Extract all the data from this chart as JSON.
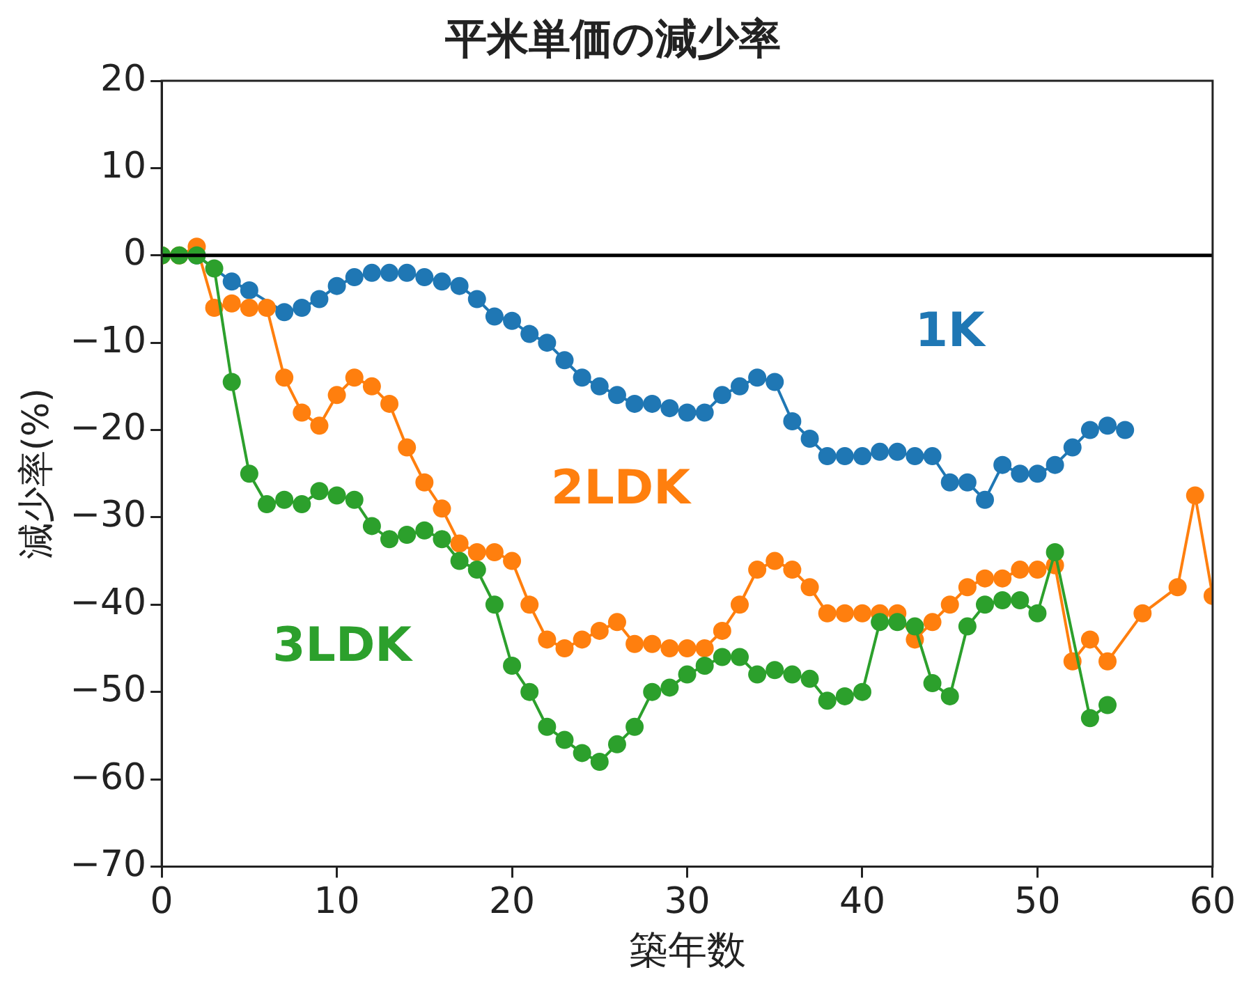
{
  "chart_data": {
    "type": "line",
    "title": "平米単価の減少率",
    "xlabel": "築年数",
    "ylabel": "減少率(%)",
    "xlim": [
      0,
      60
    ],
    "xticks": [
      0,
      10,
      20,
      30,
      40,
      50,
      60
    ],
    "ylim": [
      -70,
      20
    ],
    "yticks": [
      {
        "value": -70,
        "label": "−70"
      },
      {
        "value": -60,
        "label": "−60"
      },
      {
        "value": -50,
        "label": "−50"
      },
      {
        "value": -40,
        "label": "−40"
      },
      {
        "value": -30,
        "label": "−30"
      },
      {
        "value": -20,
        "label": "−20"
      },
      {
        "value": -10,
        "label": "−10"
      },
      0,
      10,
      20
    ],
    "grid": false,
    "legend": false,
    "marker": "circle",
    "line_style": "solid",
    "ref_lines": [
      {
        "axis": "y",
        "value": 0,
        "color": "#000000"
      }
    ],
    "series": [
      {
        "name": "1K",
        "color": "#1f77b4",
        "x": [
          2,
          3,
          4,
          5,
          6,
          7,
          8,
          9,
          10,
          11,
          12,
          13,
          14,
          15,
          16,
          17,
          18,
          19,
          20,
          21,
          22,
          23,
          24,
          25,
          26,
          27,
          28,
          29,
          30,
          31,
          32,
          33,
          34,
          35,
          36,
          37,
          38,
          39,
          40,
          41,
          42,
          43,
          44,
          45,
          46,
          47,
          48,
          49,
          50,
          51,
          52,
          53,
          54,
          55
        ],
        "values": [
          0,
          null,
          -3,
          -4,
          null,
          -6.5,
          -6,
          -5,
          -3.5,
          -2.5,
          -2,
          -2,
          -2,
          -2.5,
          -3,
          -3.5,
          -5,
          -7,
          -7.5,
          -9,
          -10,
          -12,
          -14,
          -15,
          -16,
          -17,
          -17,
          -17.5,
          -18,
          -18,
          -16,
          -15,
          -14,
          -14.5,
          -19,
          -21,
          -23,
          -23,
          -23,
          -22.5,
          -22.5,
          -23,
          -23,
          -26,
          -26,
          -28,
          -24,
          -25,
          -25,
          -24,
          -22,
          -20,
          -19.5,
          -20
        ]
      },
      {
        "name": "2LDK",
        "color": "#ff7f0e",
        "x": [
          0,
          1,
          2,
          3,
          4,
          5,
          6,
          7,
          8,
          9,
          10,
          11,
          12,
          13,
          14,
          15,
          16,
          17,
          18,
          19,
          20,
          21,
          22,
          23,
          24,
          25,
          26,
          27,
          28,
          29,
          30,
          31,
          32,
          33,
          34,
          35,
          36,
          37,
          38,
          39,
          40,
          41,
          42,
          43,
          44,
          45,
          46,
          47,
          48,
          49,
          50,
          51,
          52,
          53,
          54,
          56,
          58,
          59,
          60
        ],
        "values": [
          0,
          0,
          1,
          -6,
          -5.5,
          -6,
          -6,
          -14,
          -18,
          -19.5,
          -16,
          -14,
          -15,
          -17,
          -22,
          -26,
          -29,
          -33,
          -34,
          -34,
          -35,
          -40,
          -44,
          -45,
          -44,
          -43,
          -42,
          -44.5,
          -44.5,
          -45,
          -45,
          -45,
          -43,
          -40,
          -36,
          -35,
          -36,
          -38,
          -41,
          -41,
          -41,
          -41,
          -41,
          -44,
          -42,
          -40,
          -38,
          -37,
          -37,
          -36,
          -36,
          -35.5,
          -46.5,
          -44,
          -46.5,
          -41,
          -38,
          -27.5,
          -39
        ]
      },
      {
        "name": "3LDK",
        "color": "#2ca02c",
        "x": [
          0,
          1,
          2,
          3,
          4,
          5,
          6,
          7,
          8,
          9,
          10,
          11,
          12,
          13,
          14,
          15,
          16,
          17,
          18,
          19,
          20,
          21,
          22,
          23,
          24,
          25,
          26,
          27,
          28,
          29,
          30,
          31,
          32,
          33,
          34,
          35,
          36,
          37,
          38,
          39,
          40,
          41,
          42,
          43,
          44,
          45,
          46,
          47,
          48,
          49,
          50,
          51,
          53,
          54
        ],
        "values": [
          0,
          0,
          0,
          -1.5,
          -14.5,
          -25,
          -28.5,
          -28,
          -28.5,
          -27,
          -27.5,
          -28,
          -31,
          -32.5,
          -32,
          -31.5,
          -32.5,
          -35,
          -36,
          -40,
          -47,
          -50,
          -54,
          -55.5,
          -57,
          -58,
          -56,
          -54,
          -50,
          -49.5,
          -48,
          -47,
          -46,
          -46,
          -48,
          -47.5,
          -48,
          -48.5,
          -51,
          -50.5,
          -50,
          -42,
          -42,
          -42.5,
          -49,
          -50.5,
          -42.5,
          -40,
          -39.5,
          -39.5,
          -41,
          -34,
          -53,
          -51.5
        ]
      }
    ]
  }
}
